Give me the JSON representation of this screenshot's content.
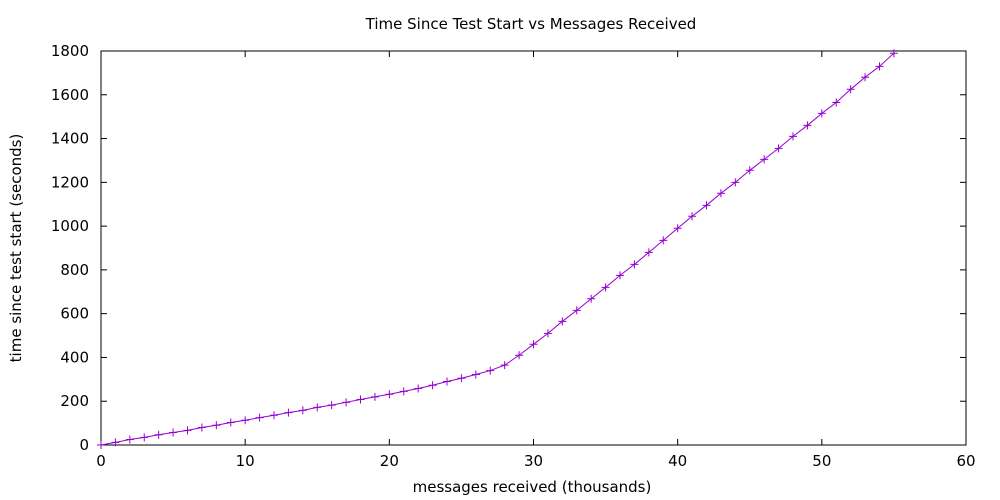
{
  "chart_data": {
    "type": "line",
    "title": "Time Since Test Start vs Messages Received",
    "xlabel": "messages received (thousands)",
    "ylabel": "time since test start (seconds)",
    "xlim": [
      0,
      60
    ],
    "ylim": [
      0,
      1800
    ],
    "x_ticks": [
      0,
      10,
      20,
      30,
      40,
      50,
      60
    ],
    "y_ticks": [
      0,
      200,
      400,
      600,
      800,
      1000,
      1200,
      1400,
      1600,
      1800
    ],
    "grid": false,
    "marker": "plus",
    "series": [
      {
        "color": "#9400d3",
        "x": [
          0,
          1,
          2,
          3,
          4,
          5,
          6,
          7,
          8,
          9,
          10,
          11,
          12,
          13,
          14,
          15,
          16,
          17,
          18,
          19,
          20,
          21,
          22,
          23,
          24,
          25,
          26,
          27,
          28,
          29,
          30,
          31,
          32,
          33,
          34,
          35,
          36,
          37,
          38,
          39,
          40,
          41,
          42,
          43,
          44,
          45,
          46,
          47,
          48,
          49,
          50,
          51,
          52,
          53,
          54,
          55
        ],
        "y": [
          0,
          12,
          25,
          35,
          47,
          57,
          67,
          80,
          90,
          103,
          113,
          125,
          136,
          148,
          158,
          172,
          182,
          195,
          208,
          220,
          232,
          245,
          258,
          273,
          290,
          305,
          322,
          340,
          365,
          410,
          460,
          510,
          565,
          615,
          668,
          720,
          775,
          825,
          880,
          935,
          990,
          1045,
          1095,
          1150,
          1200,
          1255,
          1305,
          1355,
          1410,
          1460,
          1515,
          1565,
          1625,
          1680,
          1730,
          1790
        ]
      }
    ]
  }
}
